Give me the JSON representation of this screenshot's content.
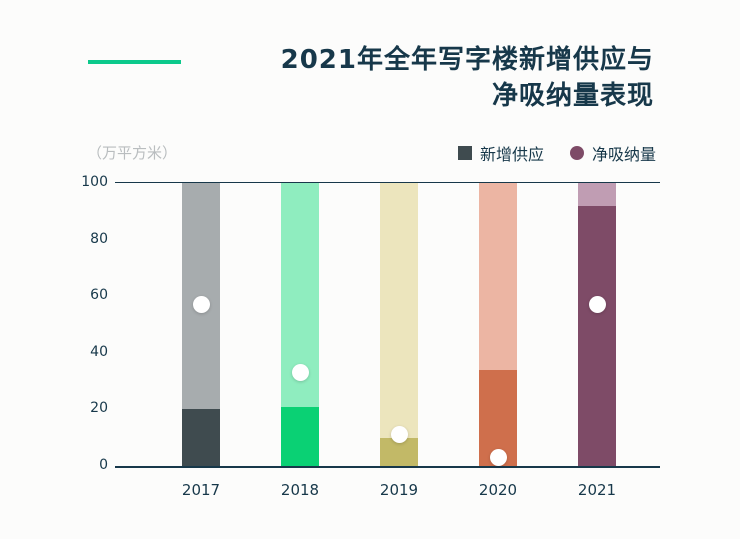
{
  "page": {
    "bg": "#fcfcfb",
    "accent_color": "#0cc98b",
    "text_color": "#17384a",
    "unit_label_color": "#b9bdbf"
  },
  "title": {
    "line1": "2021年全年写字楼新增供应与",
    "line2": "净吸纳量表现"
  },
  "unit_label": "（万平方米）",
  "legend": {
    "items": [
      {
        "label": "新增供应",
        "marker": "square",
        "color": "#3f4b4f"
      },
      {
        "label": "净吸纳量",
        "marker": "circle",
        "color": "#7e4b67"
      }
    ]
  },
  "chart_data": {
    "type": "bar",
    "title": "2021年全年写字楼新增供应与净吸纳量表现",
    "ylabel": "（万平方米）",
    "xlabel": "",
    "ylim": [
      0,
      100
    ],
    "yticks": [
      0,
      20,
      40,
      60,
      80,
      100
    ],
    "grid": false,
    "legend_position": "top-right",
    "categories": [
      "2017",
      "2018",
      "2019",
      "2020",
      "2021"
    ],
    "series": [
      {
        "name": "新增供应",
        "type": "bar",
        "values": [
          20,
          21,
          10,
          34,
          92
        ]
      },
      {
        "name": "净吸纳量",
        "type": "point",
        "values": [
          57,
          33,
          11,
          3,
          57
        ]
      }
    ],
    "background_bar_values": [
      100,
      100,
      100,
      100,
      100
    ],
    "bar_colors": [
      "#3f4b4f",
      "#0ad174",
      "#c2b967",
      "#cf6f4c",
      "#7e4b67"
    ],
    "bar_bg_colors": [
      "#a7acae",
      "#8fedbf",
      "#ece5bd",
      "#ecb5a3",
      "#c09db3"
    ],
    "point_color": "#ffffff"
  }
}
